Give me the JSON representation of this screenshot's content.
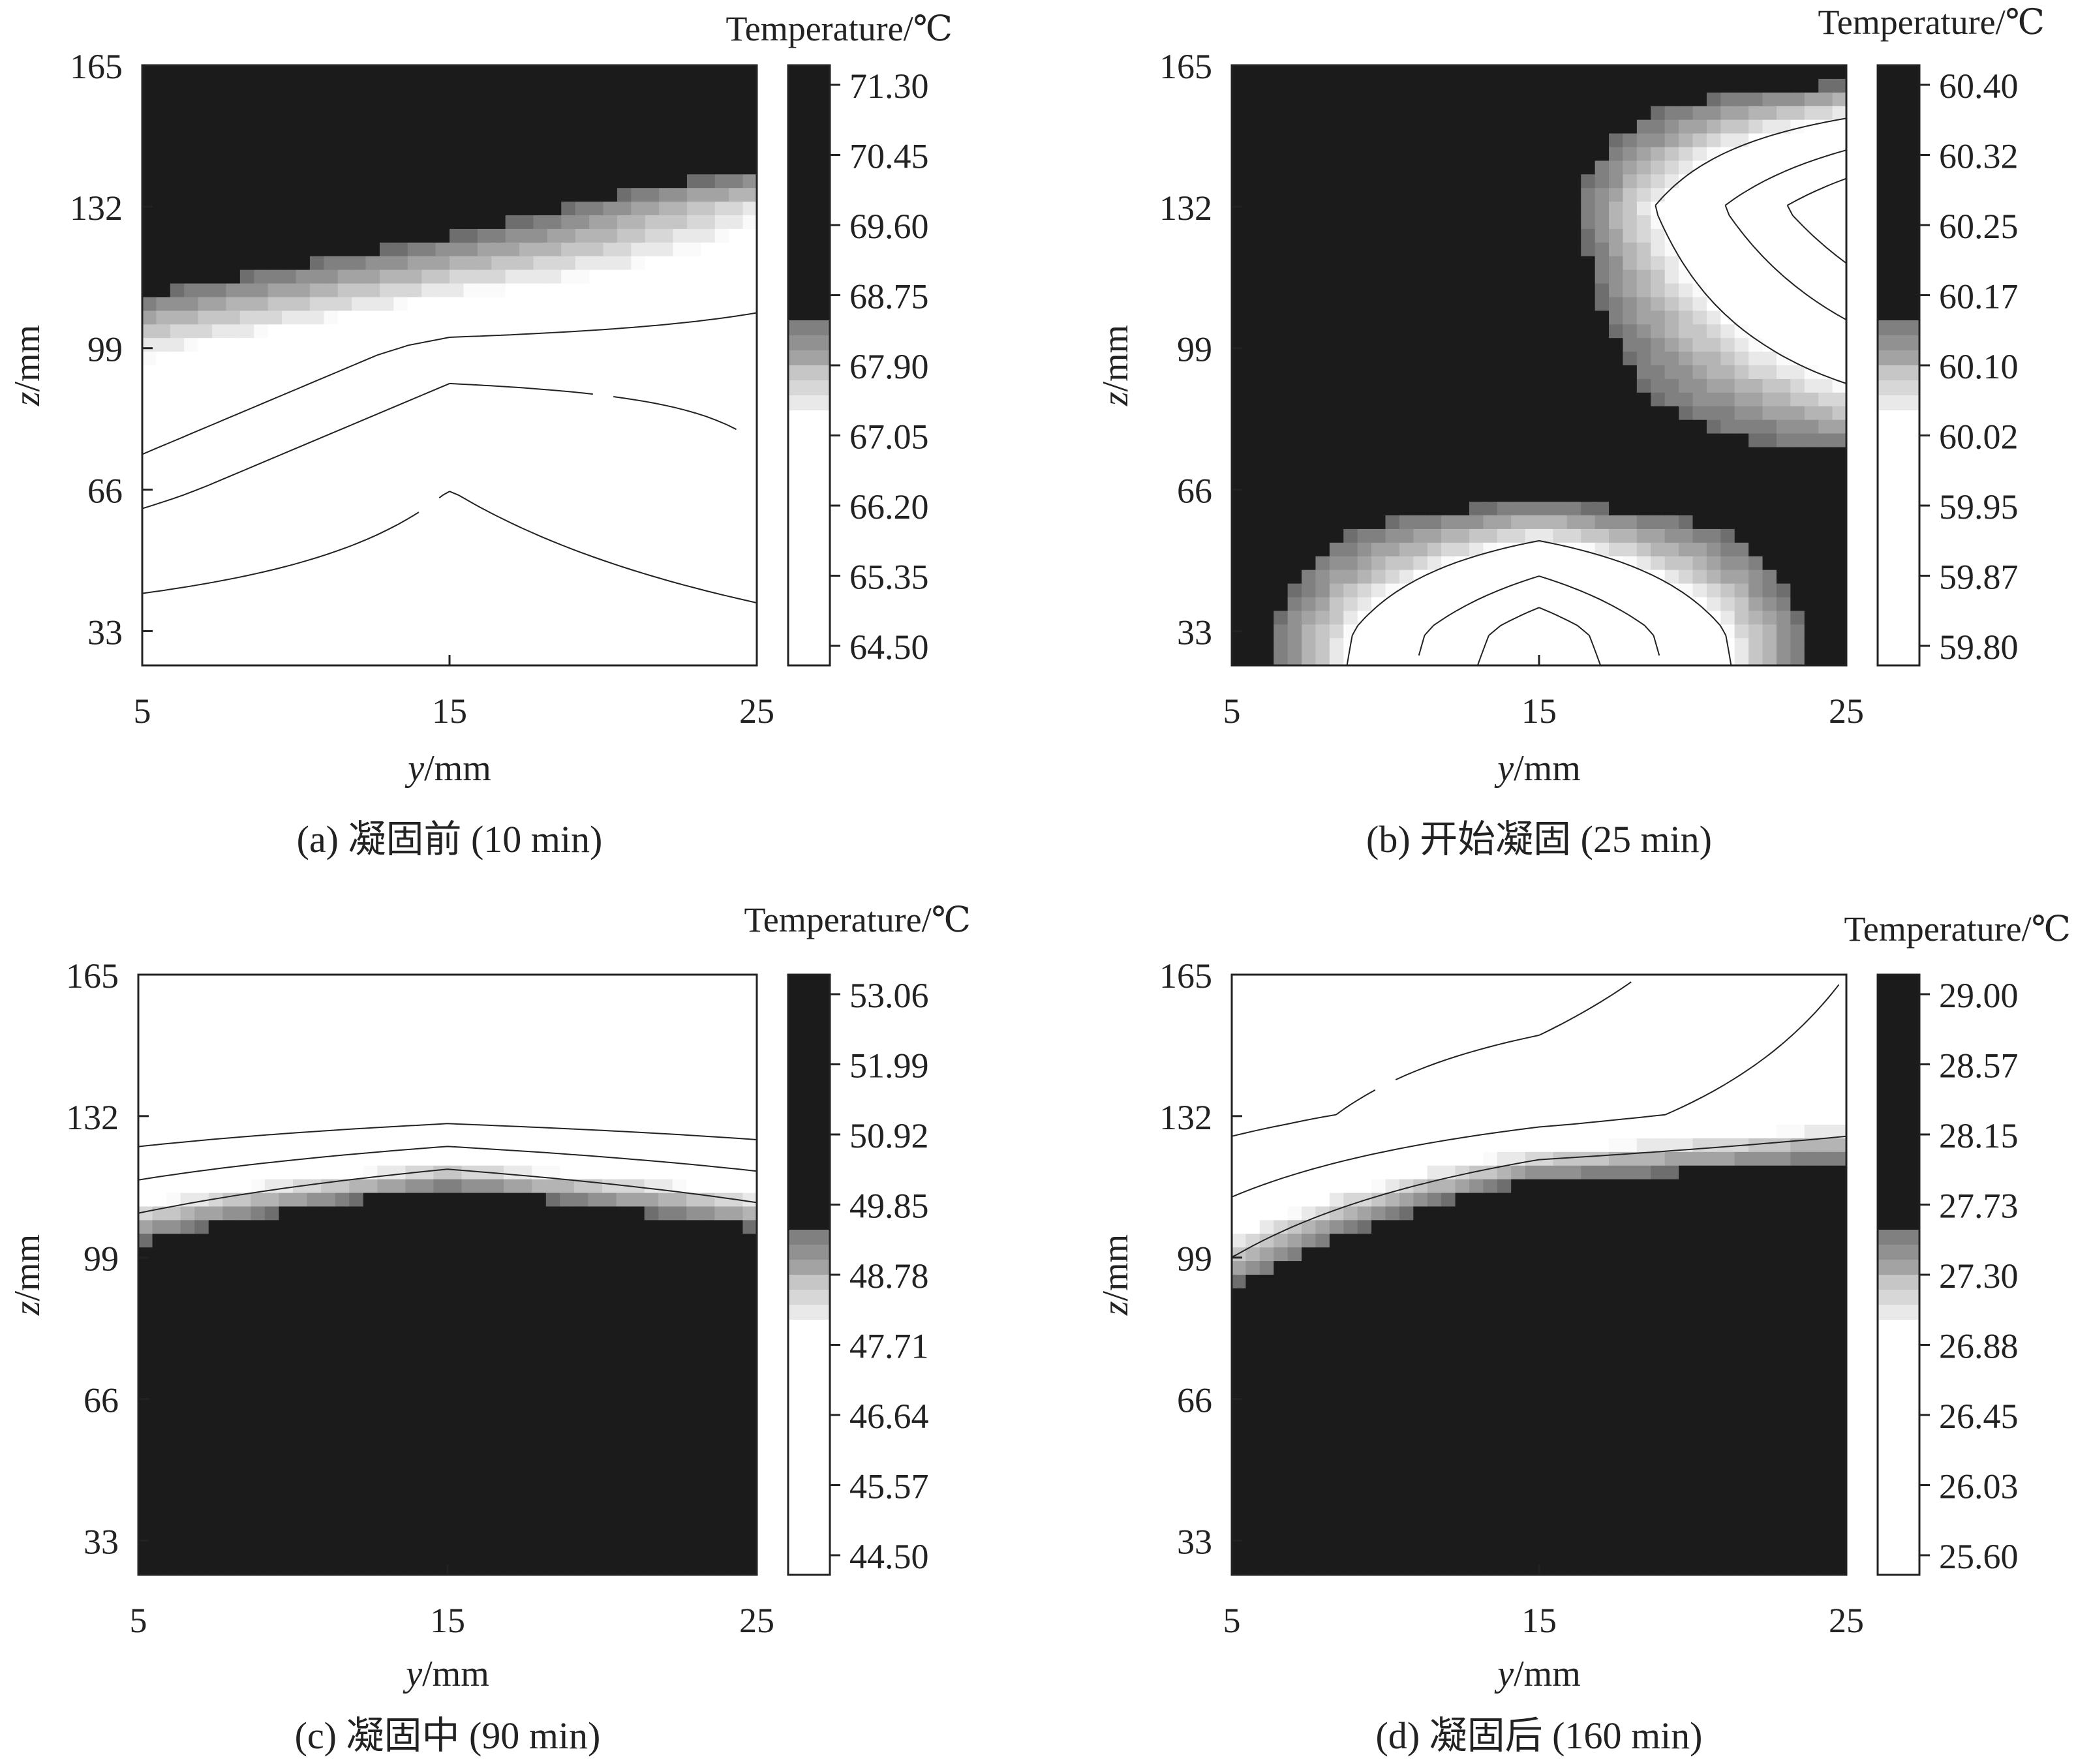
{
  "colors": {
    "dark": "#1b1b1b",
    "light": "#ffffff",
    "axis": "#222222",
    "contour_line": "#222222"
  },
  "panels": [
    {
      "caption": "(a) 凝固前 (10 min)",
      "chart_data": {
        "type": "heatmap",
        "xlabel_var": "y",
        "xlabel_unit": "/mm",
        "ylabel_var": "z",
        "ylabel_unit": "/mm",
        "xlim": [
          5,
          25
        ],
        "ylim": [
          25,
          165
        ],
        "xticks": [
          "5",
          "15",
          "25"
        ],
        "yticks": [
          "33",
          "66",
          "99",
          "132",
          "165"
        ],
        "colorbar_title": "Temperature/℃",
        "colorbar_ticks": [
          "71.30",
          "70.45",
          "69.60",
          "68.75",
          "67.90",
          "67.05",
          "66.20",
          "65.35",
          "64.50"
        ],
        "colorbar_grad": [
          0.42,
          0.58
        ],
        "x": [
          5,
          15,
          25
        ],
        "z": [
          25,
          33,
          66,
          99,
          132,
          165
        ],
        "temperature": [
          [
            64.5,
            64.5,
            64.5
          ],
          [
            64.8,
            64.6,
            65.0
          ],
          [
            66.3,
            65.2,
            66.0
          ],
          [
            67.5,
            66.4,
            66.3
          ],
          [
            70.0,
            69.0,
            67.5
          ],
          [
            71.3,
            71.3,
            71.3
          ]
        ],
        "lines": [
          65.2,
          66.1,
          66.6
        ]
      }
    },
    {
      "caption": "(b) 开始凝固 (25 min)",
      "chart_data": {
        "type": "heatmap",
        "xlabel_var": "y",
        "xlabel_unit": "/mm",
        "ylabel_var": "z",
        "ylabel_unit": "/mm",
        "xlim": [
          5,
          25
        ],
        "ylim": [
          25,
          165
        ],
        "xticks": [
          "5",
          "15",
          "25"
        ],
        "yticks": [
          "33",
          "66",
          "99",
          "132",
          "165"
        ],
        "colorbar_title": "Temperature/℃",
        "colorbar_ticks": [
          "60.40",
          "60.32",
          "60.25",
          "60.17",
          "60.10",
          "60.02",
          "59.95",
          "59.87",
          "59.80"
        ],
        "colorbar_grad": [
          0.42,
          0.58
        ],
        "x": [
          5,
          15,
          25
        ],
        "z": [
          25,
          33,
          66,
          99,
          132,
          165
        ],
        "temperature": [
          [
            60.2,
            59.8,
            60.2
          ],
          [
            60.2,
            59.82,
            60.2
          ],
          [
            60.2,
            60.18,
            60.2
          ],
          [
            60.2,
            60.2,
            60.0
          ],
          [
            60.2,
            60.2,
            59.8
          ],
          [
            60.2,
            60.2,
            60.2
          ]
        ],
        "lines": [
          59.88,
          59.96,
          60.05
        ]
      }
    },
    {
      "caption": "(c) 凝固中 (90 min)",
      "chart_data": {
        "type": "heatmap",
        "xlabel_var": "y",
        "xlabel_unit": "/mm",
        "ylabel_var": "z",
        "ylabel_unit": "/mm",
        "xlim": [
          5,
          25
        ],
        "ylim": [
          25,
          165
        ],
        "xticks": [
          "5",
          "15",
          "25"
        ],
        "yticks": [
          "33",
          "66",
          "99",
          "132",
          "165"
        ],
        "colorbar_title": "Temperature/℃",
        "colorbar_ticks": [
          "53.06",
          "51.99",
          "50.92",
          "49.85",
          "48.78",
          "47.71",
          "46.64",
          "45.57",
          "44.50"
        ],
        "colorbar_grad": [
          0.42,
          0.58
        ],
        "x": [
          5,
          15,
          25
        ],
        "z": [
          25,
          33,
          66,
          99,
          132,
          165
        ],
        "temperature": [
          [
            53.06,
            53.06,
            53.06
          ],
          [
            53.06,
            53.06,
            53.06
          ],
          [
            53.06,
            53.06,
            53.06
          ],
          [
            50.0,
            53.06,
            50.5
          ],
          [
            44.9,
            45.6,
            45.1
          ],
          [
            44.5,
            44.5,
            44.5
          ]
        ],
        "lines": [
          46.0,
          47.2,
          48.4
        ]
      }
    },
    {
      "caption": "(d) 凝固后 (160 min)",
      "chart_data": {
        "type": "heatmap",
        "xlabel_var": "y",
        "xlabel_unit": "/mm",
        "ylabel_var": "z",
        "ylabel_unit": "/mm",
        "xlim": [
          5,
          25
        ],
        "ylim": [
          25,
          165
        ],
        "xticks": [
          "5",
          "15",
          "25"
        ],
        "yticks": [
          "33",
          "66",
          "99",
          "132",
          "165"
        ],
        "colorbar_title": "Temperature/℃",
        "colorbar_ticks": [
          "29.00",
          "28.57",
          "28.15",
          "27.73",
          "27.30",
          "26.88",
          "26.45",
          "26.03",
          "25.60"
        ],
        "colorbar_grad": [
          0.42,
          0.58
        ],
        "x": [
          5,
          15,
          25
        ],
        "z": [
          25,
          33,
          66,
          99,
          132,
          165
        ],
        "temperature": [
          [
            29.0,
            29.0,
            29.0
          ],
          [
            29.0,
            29.0,
            29.0
          ],
          [
            29.0,
            29.0,
            29.0
          ],
          [
            27.2,
            29.0,
            29.0
          ],
          [
            25.8,
            26.4,
            26.9
          ],
          [
            25.6,
            25.7,
            26.6
          ]
        ],
        "lines": [
          26.0,
          26.6,
          27.2
        ]
      }
    }
  ]
}
